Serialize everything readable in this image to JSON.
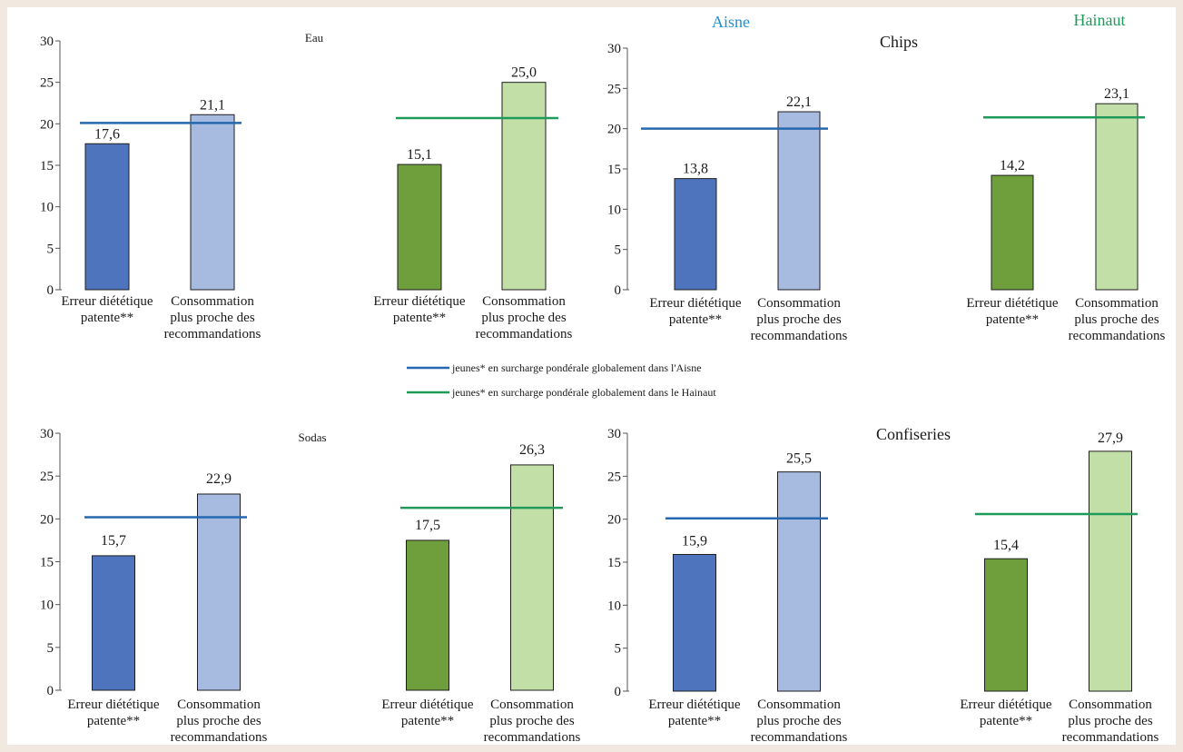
{
  "regions": [
    {
      "name": "Aisne",
      "color": "#1f8fcf"
    },
    {
      "name": "Hainaut",
      "color": "#1f9a5a"
    }
  ],
  "legend": {
    "items": [
      {
        "label": "jeunes* en surcharge pondérale globalement dans l'Aisne",
        "color": "#2568b0"
      },
      {
        "label": "jeunes* en surcharge pondérale globalement dans le Hainaut",
        "color": "#1f9a5a"
      }
    ]
  },
  "colors": {
    "aisne_dark": "#4f74be",
    "aisne_light": "#a7badf",
    "hainaut_dark": "#6f9e3c",
    "hainaut_light": "#c3dfa8",
    "line_aisne": "#2568b0",
    "line_hainaut": "#1f9a5a"
  },
  "chart_data": [
    {
      "type": "bar",
      "title": "Eau",
      "ylim": [
        0,
        30
      ],
      "yticks": [
        "0",
        "5",
        "10",
        "15",
        "20",
        "25",
        "30"
      ],
      "categories": [
        [
          "Erreur diététique",
          "patente**"
        ],
        [
          "Consommation",
          "plus proche des",
          "recommandations"
        ],
        [
          "Erreur diététique",
          "patente**"
        ],
        [
          "Consommation",
          "plus proche des",
          "recommandations"
        ]
      ],
      "values": [
        17.6,
        21.1,
        15.1,
        25.0
      ],
      "value_labels": [
        "17,6",
        "21,1",
        "15,1",
        "25,0"
      ],
      "reference_lines": [
        {
          "region": "Aisne",
          "value": 20.1
        },
        {
          "region": "Hainaut",
          "value": 20.7
        }
      ]
    },
    {
      "type": "bar",
      "title": "Chips",
      "ylim": [
        0,
        30
      ],
      "yticks": [
        "0",
        "5",
        "10",
        "15",
        "20",
        "25",
        "30"
      ],
      "categories": [
        [
          "Erreur diététique",
          "patente**"
        ],
        [
          "Consommation",
          "plus proche des",
          "recommandations"
        ],
        [
          "Erreur diététique",
          "patente**"
        ],
        [
          "Consommation",
          "plus proche des",
          "recommandations"
        ]
      ],
      "values": [
        13.8,
        22.1,
        14.2,
        23.1
      ],
      "value_labels": [
        "13,8",
        "22,1",
        "14,2",
        "23,1"
      ],
      "reference_lines": [
        {
          "region": "Aisne",
          "value": 20.0
        },
        {
          "region": "Hainaut",
          "value": 21.4
        }
      ]
    },
    {
      "type": "bar",
      "title": "Sodas",
      "ylim": [
        0,
        30
      ],
      "yticks": [
        "0",
        "5",
        "10",
        "15",
        "20",
        "25",
        "30"
      ],
      "categories": [
        [
          "Erreur diététique",
          "patente**"
        ],
        [
          "Consommation",
          "plus proche des",
          "recommandations"
        ],
        [
          "Erreur diététique",
          "patente**"
        ],
        [
          "Consommation",
          "plus proche des",
          "recommandations"
        ]
      ],
      "values": [
        15.7,
        22.9,
        17.5,
        26.3
      ],
      "value_labels": [
        "15,7",
        "22,9",
        "17,5",
        "26,3"
      ],
      "reference_lines": [
        {
          "region": "Aisne",
          "value": 20.2
        },
        {
          "region": "Hainaut",
          "value": 21.3
        }
      ]
    },
    {
      "type": "bar",
      "title": "Confiseries",
      "ylim": [
        0,
        30
      ],
      "yticks": [
        "0",
        "5",
        "10",
        "15",
        "20",
        "25",
        "30"
      ],
      "categories": [
        [
          "Erreur diététique",
          "patente**"
        ],
        [
          "Consommation",
          "plus proche des",
          "recommandations"
        ],
        [
          "Erreur diététique",
          "patente**"
        ],
        [
          "Consommation",
          "plus proche des",
          "recommandations"
        ]
      ],
      "values": [
        15.9,
        25.5,
        15.4,
        27.9
      ],
      "value_labels": [
        "15,9",
        "25,5",
        "15,4",
        "27,9"
      ],
      "reference_lines": [
        {
          "region": "Aisne",
          "value": 20.1
        },
        {
          "region": "Hainaut",
          "value": 20.6
        }
      ]
    }
  ]
}
